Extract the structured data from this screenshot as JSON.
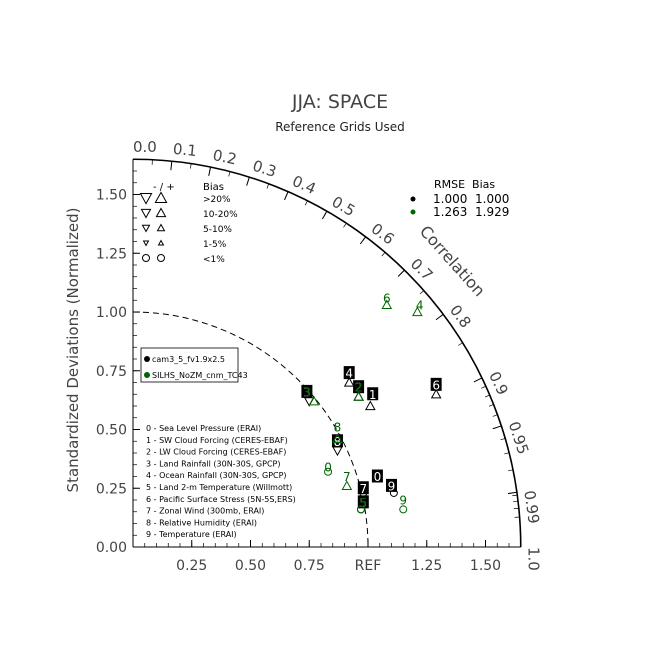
{
  "chart_data": {
    "type": "scatter",
    "title": "JJA: SPACE",
    "subtitle": "Reference Grids Used",
    "ylabel": "Standardized Deviations (Normalized)",
    "correlation_label": "Correlation",
    "ref_label": "REF",
    "radial_ticks": [
      {
        "value": 0,
        "label": "0.00"
      },
      {
        "value": 0.25,
        "label": "0.25"
      },
      {
        "value": 0.5,
        "label": "0.50"
      },
      {
        "value": 0.75,
        "label": "0.75"
      },
      {
        "value": 1.0,
        "label": "1.00"
      },
      {
        "value": 1.25,
        "label": "1.25"
      },
      {
        "value": 1.5,
        "label": "1.50"
      }
    ],
    "x_ticks": [
      {
        "value": 0.25,
        "label": "0.25"
      },
      {
        "value": 0.5,
        "label": "0.50"
      },
      {
        "value": 0.75,
        "label": "0.75"
      },
      {
        "value": 1.0,
        "label": "REF"
      },
      {
        "value": 1.25,
        "label": "1.25"
      },
      {
        "value": 1.5,
        "label": "1.50"
      }
    ],
    "correlation_ticks": [
      {
        "value": 0.0,
        "label": "0.0"
      },
      {
        "value": 0.1,
        "label": "0.1"
      },
      {
        "value": 0.2,
        "label": "0.2"
      },
      {
        "value": 0.3,
        "label": "0.3"
      },
      {
        "value": 0.4,
        "label": "0.4"
      },
      {
        "value": 0.5,
        "label": "0.5"
      },
      {
        "value": 0.6,
        "label": "0.6"
      },
      {
        "value": 0.7,
        "label": "0.7"
      },
      {
        "value": 0.8,
        "label": "0.8"
      },
      {
        "value": 0.9,
        "label": "0.9"
      },
      {
        "value": 0.95,
        "label": "0.95"
      },
      {
        "value": 0.99,
        "label": "0.99"
      },
      {
        "value": 1.0,
        "label": "1.0"
      }
    ],
    "max_std": 1.65,
    "ref_std": 1.0,
    "bias_legend": {
      "header_sign": "- / +",
      "header_bias": "Bias",
      "rows": [
        {
          "label": ">20%",
          "size": 8
        },
        {
          "label": "10-20%",
          "size": 6.5
        },
        {
          "label": "5-10%",
          "size": 5
        },
        {
          "label": "1-5%",
          "size": 3.5
        },
        {
          "label": "<1%",
          "circle": true
        }
      ]
    },
    "rmse_table": {
      "header": "RMSE  Bias",
      "rows": [
        {
          "rmse": "1.000",
          "bias": "1.000",
          "color": "#000000"
        },
        {
          "rmse": "1.263",
          "bias": "1.929",
          "color": "#006600"
        }
      ]
    },
    "series": [
      {
        "name": "cam3_5_fv1.9x2.5",
        "color": "#000000"
      },
      {
        "name": "SILHS_NoZM_cnm_TC43",
        "color": "#006600"
      }
    ],
    "variables": [
      "0 - Sea Level Pressure (ERAI)",
      "1 - SW Cloud Forcing (CERES-EBAF)",
      "2 - LW Cloud Forcing (CERES-EBAF)",
      "3 - Land Rainfall (30N-30S, GPCP)",
      "4 - Ocean Rainfall (30N-30S, GPCP)",
      "5 - Land 2-m Temperature (Willmott)",
      "6 - Pacific Surface Stress (5N-5S,ERS)",
      "7 - Zonal Wind (300mb, ERAI)",
      "8 - Relative Humidity (ERAI)",
      "9 - Temperature (ERAI)"
    ],
    "points": [
      {
        "series": 0,
        "id": "0",
        "x": 1.04,
        "y": 0.3,
        "mx": 1.04,
        "my": 0.3,
        "marker": "circle"
      },
      {
        "series": 0,
        "id": "1",
        "x": 1.02,
        "y": 0.65,
        "mx": 1.01,
        "my": 0.6,
        "marker": "up"
      },
      {
        "series": 0,
        "id": "2",
        "x": 0.96,
        "y": 0.68,
        "mx": 0.96,
        "my": 0.64,
        "marker": "up"
      },
      {
        "series": 0,
        "id": "3",
        "x": 0.74,
        "y": 0.66,
        "mx": 0.75,
        "my": 0.62,
        "marker": "down"
      },
      {
        "series": 0,
        "id": "4",
        "x": 0.92,
        "y": 0.74,
        "mx": 0.92,
        "my": 0.7,
        "marker": "up"
      },
      {
        "series": 0,
        "id": "5",
        "x": 0.98,
        "y": 0.19,
        "mx": 0.97,
        "my": 0.16,
        "marker": "circle"
      },
      {
        "series": 0,
        "id": "6",
        "x": 1.29,
        "y": 0.69,
        "mx": 1.29,
        "my": 0.65,
        "marker": "up"
      },
      {
        "series": 0,
        "id": "7",
        "x": 0.98,
        "y": 0.25,
        "mx": 0.98,
        "my": 0.23,
        "marker": "circle"
      },
      {
        "series": 0,
        "id": "8",
        "x": 0.87,
        "y": 0.45,
        "mx": 0.87,
        "my": 0.41,
        "marker": "down"
      },
      {
        "series": 0,
        "id": "9",
        "x": 1.1,
        "y": 0.26,
        "mx": 1.11,
        "my": 0.23,
        "marker": "circle"
      },
      {
        "series": 1,
        "id": "0",
        "x": 0.83,
        "y": 0.34,
        "mx": 0.83,
        "my": 0.32,
        "marker": "circle"
      },
      {
        "series": 1,
        "id": "2",
        "x": 0.96,
        "y": 0.68,
        "mx": 0.96,
        "my": 0.64,
        "marker": "up"
      },
      {
        "series": 1,
        "id": "3",
        "x": 0.74,
        "y": 0.66,
        "mx": 0.77,
        "my": 0.62,
        "marker": "up"
      },
      {
        "series": 1,
        "id": "4",
        "x": 1.22,
        "y": 1.03,
        "mx": 1.21,
        "my": 1.0,
        "marker": "up"
      },
      {
        "series": 1,
        "id": "5",
        "x": 0.98,
        "y": 0.19,
        "mx": 0.97,
        "my": 0.16,
        "marker": "circle"
      },
      {
        "series": 1,
        "id": "6",
        "x": 1.08,
        "y": 1.06,
        "mx": 1.08,
        "my": 1.03,
        "marker": "up"
      },
      {
        "series": 1,
        "id": "7",
        "x": 0.91,
        "y": 0.3,
        "mx": 0.91,
        "my": 0.26,
        "marker": "up"
      },
      {
        "series": 1,
        "id": "8",
        "x": 0.87,
        "y": 0.51,
        "mx": 0.87,
        "my": 0.46,
        "marker": "up"
      },
      {
        "series": 1,
        "id": "9",
        "x": 1.15,
        "y": 0.2,
        "mx": 1.15,
        "my": 0.16,
        "marker": "circle"
      }
    ]
  }
}
